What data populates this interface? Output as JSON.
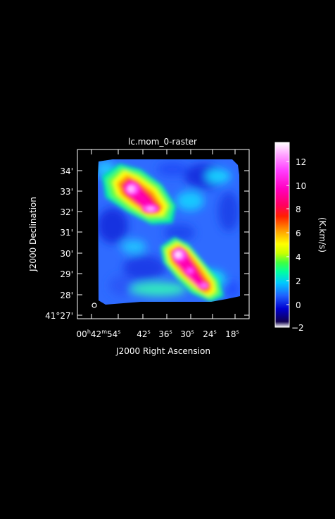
{
  "image": {
    "title": "lc.mom_0-raster",
    "x_axis_label": "J2000 Right Ascension",
    "y_axis_label": "J2000 Declination",
    "x_tick_labels": [
      {
        "h": "00",
        "hs": "h",
        "m": "42",
        "ms": "m",
        "s": "54",
        "ss": "s"
      },
      {
        "s": "42",
        "ss": "s"
      },
      {
        "s": "36",
        "ss": "s"
      },
      {
        "s": "30",
        "ss": "s"
      },
      {
        "s": "24",
        "ss": "s"
      },
      {
        "s": "18",
        "ss": "s"
      }
    ],
    "y_tick_labels": [
      "34'",
      "33'",
      "32'",
      "31'",
      "30'",
      "29'",
      "28'",
      "41°27'"
    ],
    "colorbar": {
      "label": "(K.km/s)",
      "range": [
        -2,
        13.5
      ],
      "tick_labels": [
        "12",
        "10",
        "8",
        "6",
        "4",
        "2",
        "0",
        "−2"
      ]
    },
    "colormap_stops": [
      "#100050",
      "#0000d0",
      "#2060ff",
      "#00c8ff",
      "#00ffa0",
      "#40ff40",
      "#c8ff00",
      "#ffff00",
      "#ffa000",
      "#ff2000",
      "#ff0060",
      "#ff00c0",
      "#ff40ff",
      "#ffa0ff",
      "#ffffff"
    ]
  }
}
